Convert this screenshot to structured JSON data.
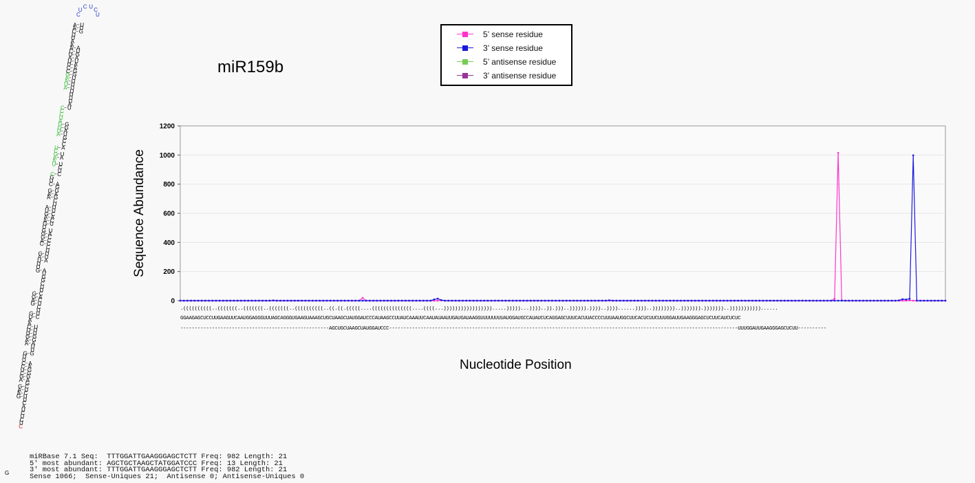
{
  "chart_data": {
    "type": "line",
    "title": "miR159b",
    "xlabel": "Nucleotide Position",
    "ylabel": "Sequence Abundance",
    "ylim": [
      0,
      1200
    ],
    "yticks": [
      0,
      200,
      400,
      600,
      800,
      1000,
      1200
    ],
    "grid": true,
    "legend_position": "top-center",
    "x_count": 215,
    "series": [
      {
        "name": "5’ sense residue",
        "color": "#ff33cc",
        "points": [
          [
            26,
            0
          ],
          [
            52,
            19
          ],
          [
            74,
            2
          ],
          [
            184,
            13
          ],
          [
            185,
            1015
          ],
          [
            186,
            2
          ],
          [
            205,
            2
          ],
          [
            215,
            0
          ]
        ]
      },
      {
        "name": "3’ sense residue",
        "color": "#1a1adc",
        "points": [
          [
            27,
            2
          ],
          [
            72,
            8
          ],
          [
            73,
            14
          ],
          [
            74,
            4
          ],
          [
            121,
            3
          ],
          [
            202,
            2
          ],
          [
            203,
            10
          ],
          [
            204,
            8
          ],
          [
            205,
            13
          ],
          [
            206,
            998
          ],
          [
            207,
            0
          ],
          [
            215,
            0
          ]
        ]
      },
      {
        "name": "5’ antisense residue",
        "color": "#77cc55",
        "points": []
      },
      {
        "name": "3’ antisense residue",
        "color": "#993399",
        "points": []
      }
    ]
  },
  "sequence": {
    "structure": ".((((((((((..(((((((..(((((((..(((((((..((((((((((..((.((.(((((....((((((((((((((....((((...))))))))))))))))).....)))))...))))..)).)))..)))))).))))..))))......))))..))))))))..))))))).)))))))..)))))))))))......",
    "bases": "GGAAGAGCUCCUUGAAGUUCAAUGGAGGGUUUAGCAGGGUGAAGUAAAGCUGCUAAGCUAUGGAUCCCAUAAGCCUUAUCAAAUUCAAUAUAAUUGAUGAUAAGGUUUUUUUUAUGGAUGCCAUAUCUCAGGAGCUUUCACUUACCCCUUUAAUGGCUUCACUCUUCUUUGGAUUGAAGGGAGCUCUUCAUCUCUC",
    "reads": "----------------------------------------------------AGCUGCUAAGCUAUGGAUCCC--------------------------------------------------------------------------------------------------------------------------UUUGGAUUGAAGGGAGCUCUU----------"
  },
  "stats": {
    "mirbase": "miRBase 7.1 Seq:  TTTGGATTGAAGGGAGCTCTT Freq: 982 Length: 21",
    "five_most": "5' most abundant: AGCTGCTAAGCTATGGATCCC Freq: 13 Length: 21",
    "three_most": "3' most abundant: TTTGGATTGAAGGGAGCTCTT Freq: 982 Length: 21",
    "summary": "Sense 1066;  Sense-Uniques 21;  Antisense 0; Antisense-Uniques 0"
  },
  "hairpin": {
    "sequence": "GGAAGAGCUCCUUGAAGUUCAAUGGAGGGUUUAGCAGGGUGAAGUAAAGCUGCUAAGCUAUGGAUCCCAUAAGCCUUAUCAAAUUCAAUAUAAUUGAUGAUAAGGUUUUUUUUAUGGAUGCCAUAUCUCAGGAGCUUUCACUUACCCCUUUAAUGGCUUCACUCUUCUUUGGAUUGAAGGGAGCUCUUCAUCUCUC",
    "loop": "CUCUCU",
    "colors": {
      "default": "#000000",
      "mirna": "#dd1111",
      "star": "#33bb33",
      "loop": "#2233cc"
    }
  }
}
